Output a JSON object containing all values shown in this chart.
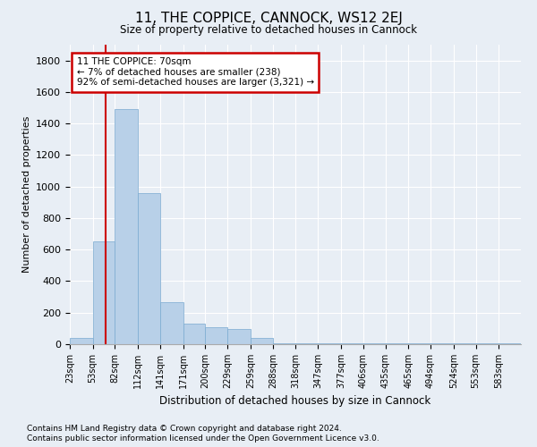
{
  "title": "11, THE COPPICE, CANNOCK, WS12 2EJ",
  "subtitle": "Size of property relative to detached houses in Cannock",
  "xlabel": "Distribution of detached houses by size in Cannock",
  "ylabel": "Number of detached properties",
  "bar_color": "#b8d0e8",
  "bar_edge_color": "#7aaad0",
  "background_color": "#e8eef5",
  "grid_color": "#ffffff",
  "bins": [
    23,
    53,
    82,
    112,
    141,
    171,
    200,
    229,
    259,
    288,
    318,
    347,
    377,
    406,
    435,
    465,
    494,
    524,
    553,
    583,
    612
  ],
  "values": [
    40,
    650,
    1490,
    960,
    265,
    130,
    110,
    95,
    40,
    5,
    5,
    5,
    5,
    5,
    5,
    5,
    5,
    5,
    5,
    5
  ],
  "property_sqm": 70,
  "annotation_text": "11 THE COPPICE: 70sqm\n← 7% of detached houses are smaller (238)\n92% of semi-detached houses are larger (3,321) →",
  "annotation_box_color": "#ffffff",
  "annotation_box_edge": "#cc0000",
  "vline_color": "#cc0000",
  "footnote1": "Contains HM Land Registry data © Crown copyright and database right 2024.",
  "footnote2": "Contains public sector information licensed under the Open Government Licence v3.0.",
  "ylim": [
    0,
    1900
  ],
  "yticks": [
    0,
    200,
    400,
    600,
    800,
    1000,
    1200,
    1400,
    1600,
    1800
  ]
}
